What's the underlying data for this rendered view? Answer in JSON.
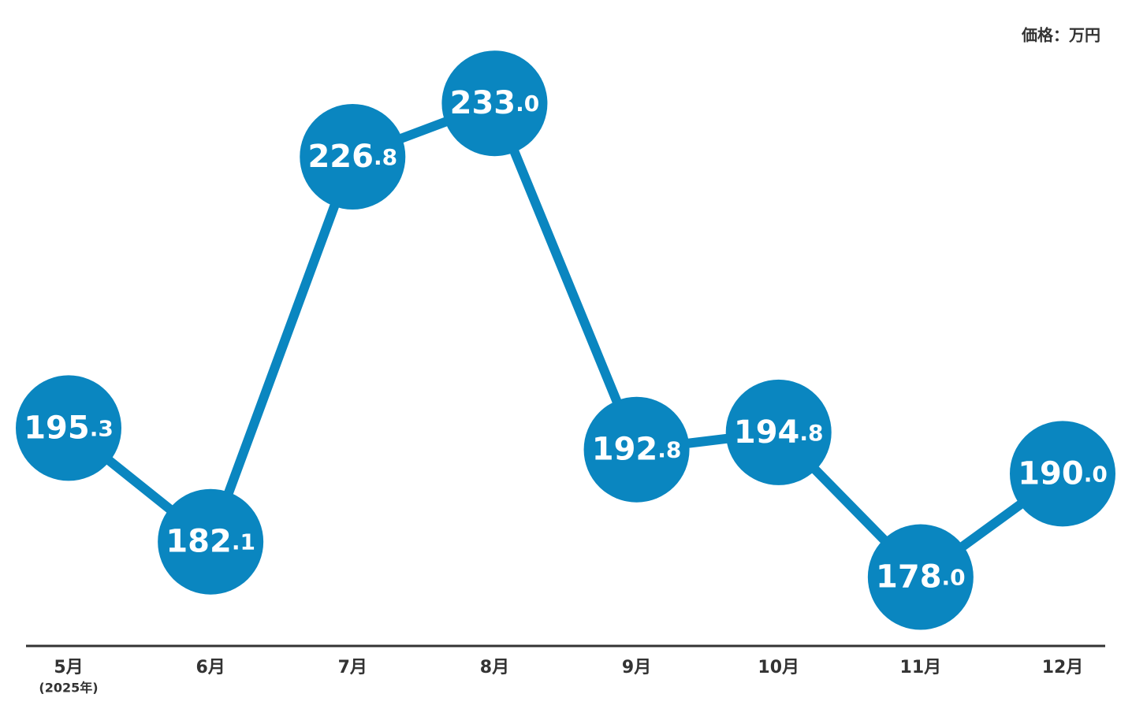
{
  "chart_data": {
    "type": "line",
    "ylabel": "価格：万円",
    "categories": [
      "5月",
      "6月",
      "7月",
      "8月",
      "9月",
      "10月",
      "11月",
      "12月"
    ],
    "annotation": "(2025年)",
    "series": [
      {
        "color": "#0a86c0",
        "values": [
          195.3,
          182.1,
          226.8,
          233.0,
          192.8,
          194.8,
          178.0,
          190.0
        ],
        "value_labels": [
          "195.3",
          "182.1",
          "226.8",
          "233.0",
          "192.8",
          "194.8",
          "178.0",
          "190.0"
        ]
      }
    ],
    "ylim": [
      170,
      245
    ]
  }
}
